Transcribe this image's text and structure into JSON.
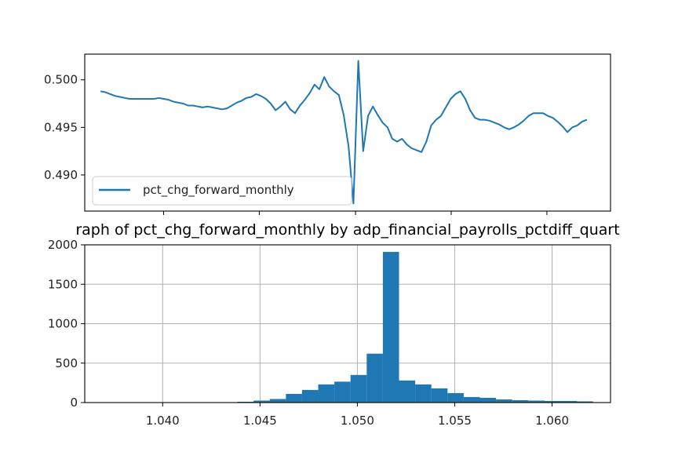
{
  "chart_data": [
    {
      "type": "line",
      "title": "",
      "xlabel": "",
      "ylabel": "",
      "ylim": [
        0.4862,
        0.5027
      ],
      "yticks": [
        "0.490",
        "0.495",
        "0.500"
      ],
      "xticks_labeled": false,
      "legend": {
        "placement": "lower-left",
        "entries": [
          "pct_chg_forward_monthly"
        ]
      },
      "color": "#1f77b4",
      "series": [
        {
          "name": "pct_chg_forward_monthly",
          "x": [
            0,
            1,
            2,
            3,
            4,
            5,
            6,
            7,
            8,
            9,
            10,
            11,
            12,
            13,
            14,
            15,
            16,
            17,
            18,
            19,
            20,
            21,
            22,
            23,
            24,
            25,
            26,
            27,
            28,
            29,
            30,
            31,
            32,
            33,
            34,
            35,
            36,
            37,
            38,
            39,
            40,
            41,
            42,
            43,
            44,
            45,
            46,
            47,
            48,
            49,
            50,
            51,
            52,
            53,
            54,
            55,
            56,
            57,
            58,
            59,
            60,
            61,
            62,
            63,
            64,
            65,
            66,
            67,
            68,
            69,
            70,
            71,
            72,
            73,
            74,
            75,
            76,
            77,
            78,
            79,
            80,
            81,
            82,
            83,
            84,
            85,
            86,
            87,
            88,
            89,
            90,
            91,
            92,
            93,
            94,
            95,
            96,
            97,
            98,
            99,
            100
          ],
          "values": [
            0.4988,
            0.4987,
            0.4985,
            0.4983,
            0.4982,
            0.4981,
            0.498,
            0.498,
            0.498,
            0.498,
            0.498,
            0.498,
            0.4981,
            0.498,
            0.4979,
            0.4977,
            0.4976,
            0.4975,
            0.4973,
            0.4973,
            0.4972,
            0.4971,
            0.4972,
            0.4971,
            0.497,
            0.4969,
            0.497,
            0.4973,
            0.4976,
            0.4978,
            0.4981,
            0.4982,
            0.4985,
            0.4983,
            0.498,
            0.4975,
            0.4968,
            0.4972,
            0.4977,
            0.4969,
            0.4965,
            0.4973,
            0.4979,
            0.4986,
            0.4995,
            0.499,
            0.5003,
            0.4993,
            0.4988,
            0.4984,
            0.4963,
            0.493,
            0.487,
            0.502,
            0.4925,
            0.4962,
            0.4972,
            0.4963,
            0.4955,
            0.495,
            0.4938,
            0.4935,
            0.4938,
            0.4932,
            0.4928,
            0.4926,
            0.4924,
            0.4935,
            0.4952,
            0.4958,
            0.4962,
            0.4971,
            0.498,
            0.4985,
            0.4988,
            0.498,
            0.4968,
            0.496,
            0.4958,
            0.4958,
            0.4957,
            0.4955,
            0.4953,
            0.495,
            0.4948,
            0.495,
            0.4953,
            0.4957,
            0.4962,
            0.4965,
            0.4965,
            0.4965,
            0.4962,
            0.496,
            0.4956,
            0.4951,
            0.4945,
            0.495,
            0.4952,
            0.4956,
            0.4958
          ]
        }
      ]
    },
    {
      "type": "bar",
      "title": "raph of pct_chg_forward_monthly by adp_financial_payrolls_pctdiff_quart",
      "xlabel": "",
      "ylabel": "",
      "xlim": [
        1.036,
        1.063
      ],
      "ylim": [
        0,
        2000
      ],
      "xticks": [
        "1.040",
        "1.045",
        "1.050",
        "1.055",
        "1.060"
      ],
      "yticks": [
        "0",
        "500",
        "1000",
        "1500",
        "2000"
      ],
      "grid": true,
      "color": "#1f77b4",
      "bin_start": 1.0372,
      "bin_width": 0.00083,
      "values": [
        0,
        0,
        0,
        0,
        0,
        0,
        3,
        5,
        10,
        25,
        45,
        110,
        160,
        230,
        265,
        350,
        620,
        1910,
        280,
        230,
        180,
        120,
        70,
        60,
        40,
        30,
        25,
        20,
        20,
        15
      ]
    }
  ]
}
